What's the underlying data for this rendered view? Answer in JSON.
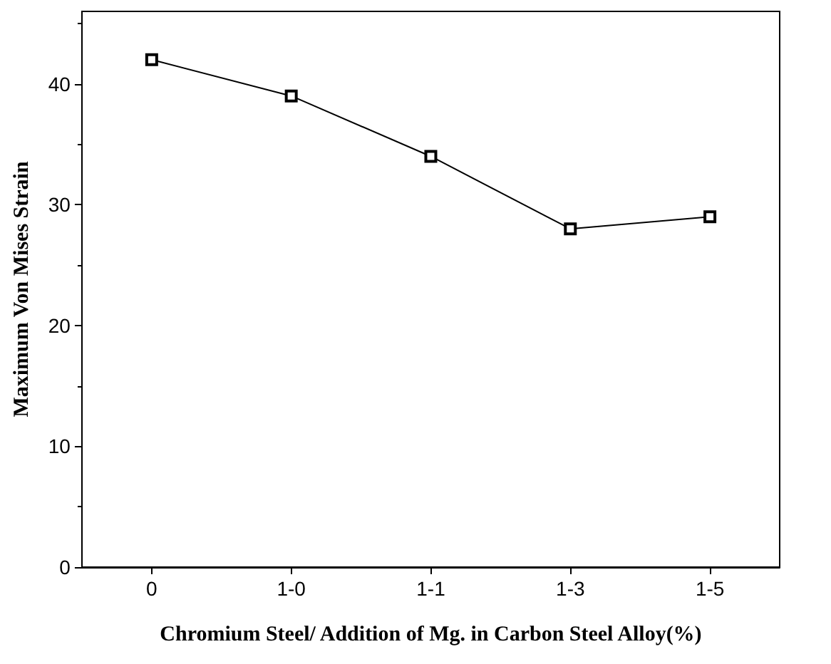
{
  "chart_data": {
    "type": "line",
    "xlabel": "Chromium Steel/ Addition of Mg. in Carbon Steel Alloy(%)",
    "ylabel": "Maximum Von Mises Strain",
    "categories": [
      "0",
      "1-0",
      "1-1",
      "1-3",
      "1-5"
    ],
    "series": [
      {
        "color": "#000000",
        "values": [
          42,
          39,
          34,
          28,
          29
        ]
      }
    ],
    "ylim": [
      0,
      46
    ],
    "yticks": [
      0,
      10,
      20,
      30,
      40
    ],
    "grid": false,
    "marker": "square",
    "line_style": "solid"
  }
}
